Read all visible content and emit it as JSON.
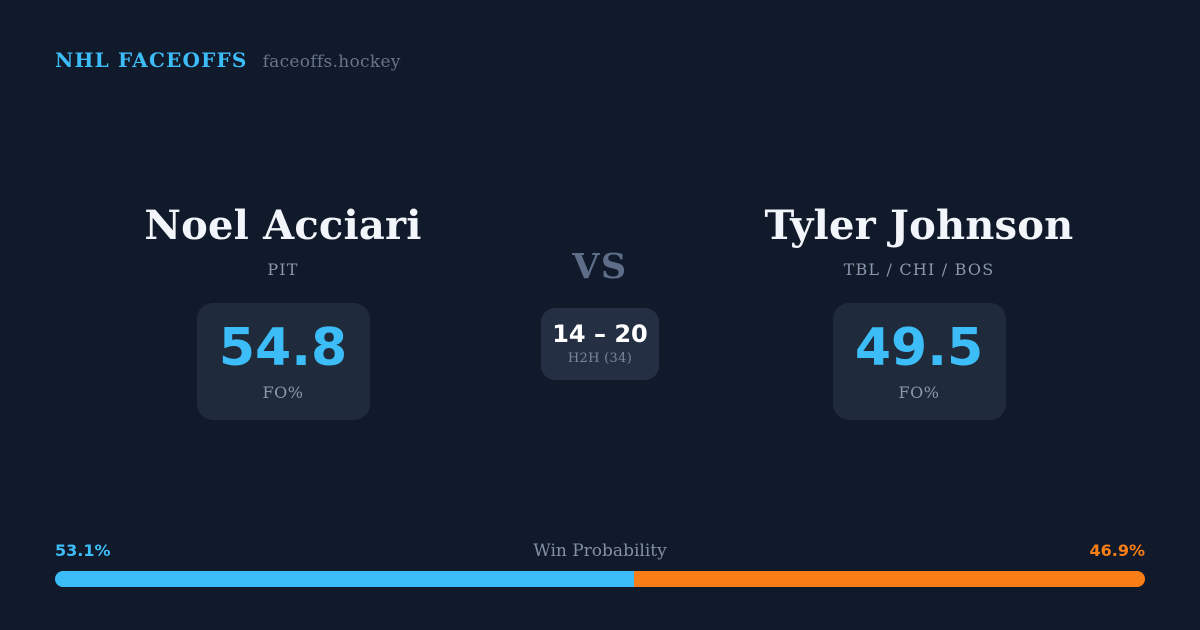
{
  "header": {
    "brand": "NHL FACEOFFS",
    "site": "faceoffs.hockey"
  },
  "matchup": {
    "vs_label": "VS",
    "h2h": {
      "score": "14 – 20",
      "label": "H2H (34)"
    },
    "players": [
      {
        "name": "Noel Acciari",
        "teams": "PIT",
        "stat_value": "54.8",
        "stat_label": "FO%"
      },
      {
        "name": "Tyler Johnson",
        "teams": "TBL / CHI / BOS",
        "stat_value": "49.5",
        "stat_label": "FO%"
      }
    ]
  },
  "win_probability": {
    "title": "Win Probability",
    "left_pct": "53.1%",
    "right_pct": "46.9%",
    "left_value": 53.1,
    "right_value": 46.9
  },
  "colors": {
    "background": "#111a2b",
    "card": "#1f2a3b",
    "card_h2h": "#242f43",
    "accent_blue": "#3dbdf8",
    "accent_orange": "#f97e16",
    "name": "#f2f5f9",
    "muted": "#8a97ad",
    "vs": "#5e6d88",
    "h2h_sub": "#79869d",
    "wp_title": "#8290a6",
    "score": "#ffffff"
  }
}
